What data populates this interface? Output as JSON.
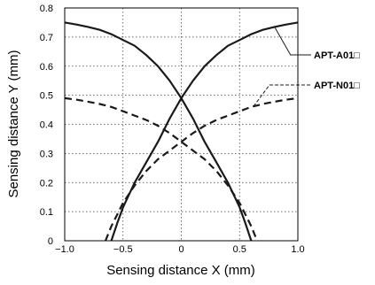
{
  "chart_data": {
    "type": "line",
    "xlabel": "Sensing distance X (mm)",
    "ylabel": "Sensing distance Y (mm)",
    "xlim": [
      -1.0,
      1.0
    ],
    "ylim": [
      0,
      0.8
    ],
    "x_ticks": [
      "−1.0",
      "−0.5",
      "0",
      "0.5",
      "1.0"
    ],
    "y_ticks": [
      "0",
      "0.1",
      "0.2",
      "0.3",
      "0.4",
      "0.5",
      "0.6",
      "0.7",
      "0.8"
    ],
    "grid": "dotted",
    "series": [
      {
        "name": "APT-A01□",
        "style": "solid",
        "curves": [
          {
            "x": [
              -0.6,
              -0.55,
              -0.5,
              -0.4,
              -0.3,
              -0.2,
              -0.1,
              0.0,
              0.1,
              0.2,
              0.3,
              0.4,
              0.5,
              0.6,
              0.7,
              0.8,
              0.9,
              1.0
            ],
            "y": [
              0.0,
              0.06,
              0.115,
              0.2,
              0.27,
              0.34,
              0.42,
              0.49,
              0.55,
              0.6,
              0.638,
              0.67,
              0.69,
              0.71,
              0.725,
              0.735,
              0.743,
              0.75
            ]
          },
          {
            "x": [
              -1.0,
              -0.9,
              -0.8,
              -0.7,
              -0.6,
              -0.5,
              -0.4,
              -0.3,
              -0.2,
              -0.1,
              0.0,
              0.1,
              0.2,
              0.3,
              0.4,
              0.5,
              0.55,
              0.6
            ],
            "y": [
              0.75,
              0.743,
              0.735,
              0.725,
              0.71,
              0.69,
              0.67,
              0.638,
              0.6,
              0.55,
              0.49,
              0.42,
              0.34,
              0.27,
              0.2,
              0.115,
              0.06,
              0.0
            ]
          }
        ]
      },
      {
        "name": "APT-N01□",
        "style": "dashed",
        "curves": [
          {
            "x": [
              -0.65,
              -0.6,
              -0.5,
              -0.4,
              -0.3,
              -0.2,
              -0.1,
              0.0,
              0.1,
              0.2,
              0.3,
              0.4,
              0.5,
              0.6,
              0.7,
              0.8,
              0.9,
              1.0
            ],
            "y": [
              0.0,
              0.05,
              0.13,
              0.19,
              0.24,
              0.28,
              0.31,
              0.34,
              0.37,
              0.395,
              0.415,
              0.43,
              0.445,
              0.46,
              0.47,
              0.478,
              0.485,
              0.49
            ]
          },
          {
            "x": [
              -1.0,
              -0.9,
              -0.8,
              -0.7,
              -0.6,
              -0.5,
              -0.4,
              -0.3,
              -0.2,
              -0.1,
              0.0,
              0.1,
              0.2,
              0.3,
              0.4,
              0.5,
              0.6,
              0.65
            ],
            "y": [
              0.49,
              0.485,
              0.478,
              0.47,
              0.46,
              0.445,
              0.43,
              0.415,
              0.395,
              0.37,
              0.34,
              0.31,
              0.28,
              0.24,
              0.19,
              0.13,
              0.05,
              0.0
            ]
          }
        ]
      }
    ],
    "legend": [
      {
        "label": "APT-A01□",
        "style": "solid",
        "at_x": 0.8
      },
      {
        "label": "APT-N01□",
        "style": "dashed",
        "at_x": 0.62
      }
    ]
  }
}
